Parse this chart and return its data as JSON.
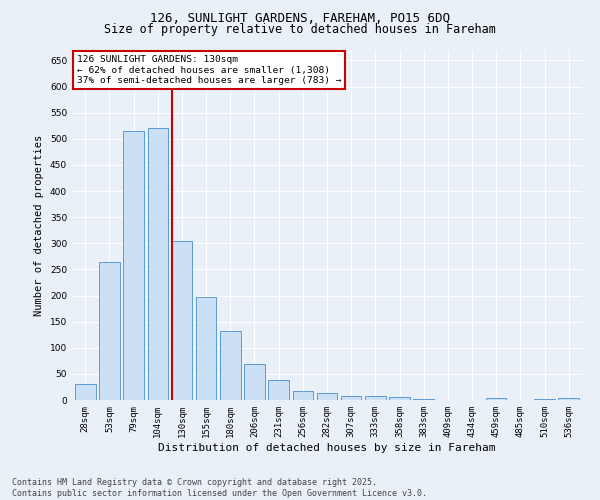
{
  "title": "126, SUNLIGHT GARDENS, FAREHAM, PO15 6DQ",
  "subtitle": "Size of property relative to detached houses in Fareham",
  "xlabel": "Distribution of detached houses by size in Fareham",
  "ylabel": "Number of detached properties",
  "categories": [
    "28sqm",
    "53sqm",
    "79sqm",
    "104sqm",
    "130sqm",
    "155sqm",
    "180sqm",
    "206sqm",
    "231sqm",
    "256sqm",
    "282sqm",
    "307sqm",
    "333sqm",
    "358sqm",
    "383sqm",
    "409sqm",
    "434sqm",
    "459sqm",
    "485sqm",
    "510sqm",
    "536sqm"
  ],
  "values": [
    30,
    265,
    515,
    520,
    305,
    198,
    132,
    68,
    38,
    17,
    14,
    8,
    7,
    5,
    1,
    0,
    0,
    3,
    0,
    1,
    3
  ],
  "bar_color": "#cce0f5",
  "bar_edge_color": "#5b9bd5",
  "vline_index": 4,
  "vline_color": "#cc0000",
  "annotation_line1": "126 SUNLIGHT GARDENS: 130sqm",
  "annotation_line2": "← 62% of detached houses are smaller (1,308)",
  "annotation_line3": "37% of semi-detached houses are larger (783) →",
  "annotation_box_color": "#ffffff",
  "annotation_box_edge": "#cc0000",
  "ylim": [
    0,
    670
  ],
  "yticks": [
    0,
    50,
    100,
    150,
    200,
    250,
    300,
    350,
    400,
    450,
    500,
    550,
    600,
    650
  ],
  "bg_color": "#eaf0f8",
  "grid_color": "#ffffff",
  "footer_line1": "Contains HM Land Registry data © Crown copyright and database right 2025.",
  "footer_line2": "Contains public sector information licensed under the Open Government Licence v3.0.",
  "title_fontsize": 9,
  "subtitle_fontsize": 8.5,
  "tick_fontsize": 6.5,
  "ylabel_fontsize": 7.5,
  "xlabel_fontsize": 8
}
